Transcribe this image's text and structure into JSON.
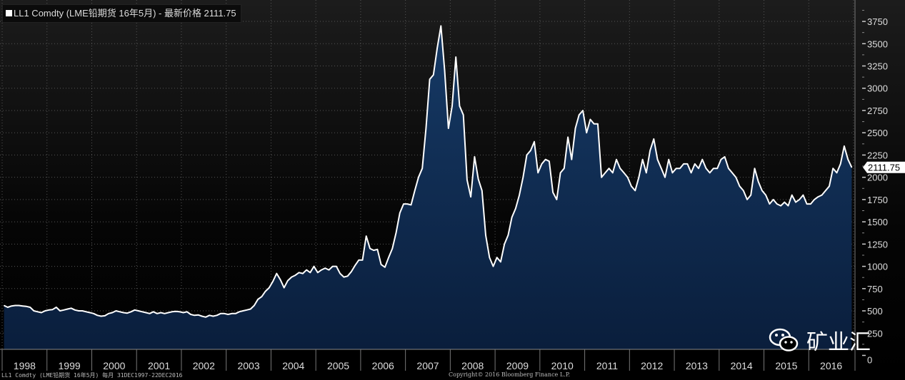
{
  "legend": {
    "text": "LL1 Comdty (LME铅期货 16年5月) - 最新价格 2111.75"
  },
  "footer": {
    "left": "LL1 Comdty (LME铅期货 16年5月)  每月 31DEC1997-22DEC2016",
    "right": "Copyright© 2016 Bloomberg Finance L.P."
  },
  "watermark": {
    "text": "矿业汇"
  },
  "colors": {
    "line": "#ffffff",
    "area_top": "#163a66",
    "area_bottom": "#0a1e3c",
    "grid": "#555555"
  },
  "chart_data": {
    "type": "area",
    "title": "LL1 Comdty (LME铅期货 16年5月) - 最新价格 2111.75",
    "frequency": "monthly",
    "x_start": "1998-01",
    "x_end": "2016-12",
    "x_ticks": [
      "1998",
      "1999",
      "2000",
      "2001",
      "2002",
      "2003",
      "2004",
      "2005",
      "2006",
      "2007",
      "2008",
      "2009",
      "2010",
      "2011",
      "2012",
      "2013",
      "2014",
      "2015",
      "2016"
    ],
    "y_ticks": [
      0,
      250,
      500,
      750,
      1000,
      1250,
      1500,
      1750,
      2000,
      2250,
      2500,
      2750,
      3000,
      3250,
      3500,
      3750
    ],
    "ylim": [
      0,
      3900
    ],
    "last_value_label": "2111.75",
    "grid": true,
    "values": [
      560,
      540,
      555,
      560,
      560,
      555,
      550,
      540,
      500,
      490,
      480,
      500,
      510,
      515,
      540,
      500,
      510,
      520,
      530,
      510,
      500,
      500,
      490,
      480,
      470,
      450,
      440,
      445,
      470,
      480,
      500,
      490,
      480,
      475,
      490,
      510,
      500,
      490,
      480,
      470,
      490,
      470,
      480,
      470,
      480,
      490,
      495,
      490,
      480,
      490,
      460,
      450,
      455,
      440,
      430,
      450,
      440,
      450,
      470,
      470,
      460,
      470,
      470,
      490,
      500,
      510,
      520,
      560,
      630,
      660,
      720,
      760,
      830,
      920,
      850,
      760,
      840,
      880,
      900,
      930,
      920,
      960,
      930,
      1000,
      930,
      960,
      980,
      960,
      1000,
      1000,
      920,
      880,
      890,
      940,
      1010,
      1070,
      1070,
      1340,
      1200,
      1180,
      1190,
      1020,
      990,
      1100,
      1200,
      1380,
      1600,
      1700,
      1700,
      1690,
      1850,
      2000,
      2100,
      2550,
      3100,
      3150,
      3450,
      3700,
      3200,
      2550,
      2800,
      3350,
      2800,
      2700,
      1970,
      1780,
      2230,
      1980,
      1850,
      1350,
      1100,
      1000,
      1100,
      1050,
      1250,
      1350,
      1550,
      1650,
      1800,
      2000,
      2250,
      2300,
      2400,
      2050,
      2150,
      2200,
      2180,
      1830,
      1750,
      2050,
      2100,
      2450,
      2200,
      2550,
      2700,
      2750,
      2500,
      2650,
      2600,
      2600,
      2000,
      2050,
      2100,
      2050,
      2200,
      2100,
      2050,
      2000,
      1900,
      1850,
      2000,
      2200,
      2050,
      2300,
      2430,
      2200,
      2100,
      2000,
      2200,
      2050,
      2100,
      2100,
      2150,
      2150,
      2050,
      2150,
      2100,
      2200,
      2100,
      2050,
      2100,
      2100,
      2200,
      2230,
      2100,
      2050,
      2000,
      1900,
      1850,
      1750,
      1800,
      2100,
      1950,
      1850,
      1800,
      1700,
      1750,
      1700,
      1680,
      1720,
      1680,
      1800,
      1720,
      1750,
      1800,
      1700,
      1700,
      1750,
      1780,
      1800,
      1850,
      1900,
      2100,
      2050,
      2150,
      2350,
      2200,
      2111.75
    ]
  }
}
